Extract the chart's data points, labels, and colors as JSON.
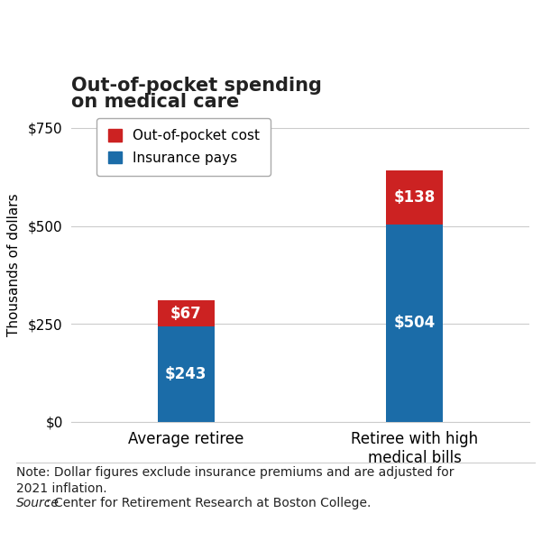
{
  "title_line1": "Out-of-pocket spending",
  "title_line2": "on medical care",
  "categories": [
    "Average retiree",
    "Retiree with high\nmedical bills"
  ],
  "insurance_values": [
    243,
    504
  ],
  "oop_values": [
    67,
    138
  ],
  "insurance_color": "#1B6CA8",
  "oop_color": "#CC2222",
  "ylabel": "Thousands of dollars",
  "ylim": [
    0,
    800
  ],
  "yticks": [
    0,
    250,
    500,
    750
  ],
  "ytick_labels": [
    "$0",
    "$250",
    "$500",
    "$750"
  ],
  "insurance_labels": [
    "$243",
    "$504"
  ],
  "oop_labels": [
    "$67",
    "$138"
  ],
  "legend_oop": "Out-of-pocket cost",
  "legend_ins": "Insurance pays",
  "note_line1": "Note: Dollar figures exclude insurance premiums and are adjusted for",
  "note_line2": "2021 inflation.",
  "source_prefix": "Source",
  "source_rest": ": Center for Retirement Research at Boston College.",
  "bg_color": "#FFFFFF",
  "bar_width": 0.25,
  "title_fontsize": 15,
  "label_fontsize": 12,
  "tick_fontsize": 11,
  "legend_fontsize": 11,
  "note_fontsize": 10,
  "grid_color": "#CCCCCC",
  "text_color": "#222222"
}
